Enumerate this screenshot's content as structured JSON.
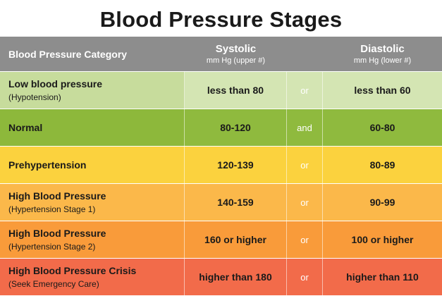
{
  "title": "Blood Pressure Stages",
  "header": {
    "category": "Blood Pressure Category",
    "systolic": "Systolic",
    "systolic_sub": "mm Hg (upper #)",
    "diastolic": "Diastolic",
    "diastolic_sub": "mm Hg (lower #)"
  },
  "rows": [
    {
      "category": "Low blood pressure",
      "sub": "(Hypotension)",
      "systolic": "less than 80",
      "joiner": "or",
      "diastolic": "less than 60"
    },
    {
      "category": "Normal",
      "sub": "",
      "systolic": "80-120",
      "joiner": "and",
      "diastolic": "60-80"
    },
    {
      "category": "Prehypertension",
      "sub": "",
      "systolic": "120-139",
      "joiner": "or",
      "diastolic": "80-89"
    },
    {
      "category": "High Blood Pressure",
      "sub": "(Hypertension Stage 1)",
      "systolic": "140-159",
      "joiner": "or",
      "diastolic": "90-99"
    },
    {
      "category": "High Blood Pressure",
      "sub": "(Hypertension Stage 2)",
      "systolic": "160 or higher",
      "joiner": "or",
      "diastolic": "100 or higher"
    },
    {
      "category": "High Blood Pressure Crisis",
      "sub": "(Seek Emergency Care)",
      "systolic": "higher than 180",
      "joiner": "or",
      "diastolic": "higher than 110"
    }
  ],
  "colors": {
    "header": "#8d8d8d",
    "low": "#c7dc9c",
    "normal": "#8fba3e",
    "prehypertension": "#fbd23e",
    "stage1": "#fbb84a",
    "stage2": "#f99b3a",
    "crisis": "#f26b4a"
  }
}
